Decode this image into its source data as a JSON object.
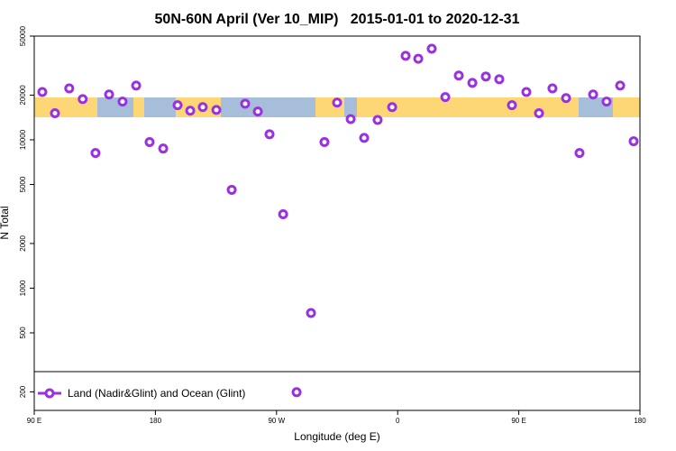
{
  "chart_data": {
    "type": "scatter",
    "title": "50N-60N April (Ver 10_MIP)   2015-01-01 to 2020-12-31",
    "x_label": "Longitude (deg E)",
    "y_label": "N Total",
    "log_y": true,
    "legend": "bottom",
    "xlim": [
      90,
      540
    ],
    "xticks": [
      {
        "value": 90,
        "label": "90 E"
      },
      180,
      {
        "value": 270,
        "label": "90 W"
      },
      {
        "value": 360,
        "label": "0"
      },
      {
        "value": 450,
        "label": "90 E"
      },
      {
        "value": 540,
        "label": "180"
      }
    ],
    "ylim": [
      150,
      50000
    ],
    "yticks": [
      200,
      500,
      1000,
      2000,
      5000,
      10000,
      20000,
      50000
    ],
    "series": [
      {
        "name": "Land (Nadir&Glint) and Ocean (Glint)",
        "color": "#9b30e0",
        "x": [
          96,
          105.4,
          116,
          126,
          135.5,
          145.6,
          155.6,
          165.7,
          175.7,
          185.8,
          196.5,
          205.9,
          215.2,
          225.3,
          236.7,
          246.7,
          256.1,
          264.8,
          274.9,
          284.9,
          295.6,
          305.6,
          315,
          325.1,
          335.1,
          345.1,
          355.9,
          365.9,
          375.3,
          385.3,
          395.4,
          405.4,
          415.5,
          425.5,
          435.5,
          444.9,
          455.6,
          465,
          475,
          485.1,
          495.1,
          505.2,
          515.2,
          525.3,
          535.3
        ],
        "values": [
          21000,
          15100,
          22200,
          18800,
          8150,
          20200,
          18100,
          23200,
          9650,
          8730,
          17100,
          15700,
          16600,
          15900,
          4600,
          17500,
          15500,
          10900,
          3150,
          199,
          680,
          9650,
          17800,
          13800,
          10300,
          13600,
          16600,
          36800,
          35200,
          41100,
          19400,
          27100,
          24200,
          26700,
          25600,
          17100,
          21000,
          15100,
          22200,
          19100,
          8150,
          20200,
          18100,
          23200,
          9770
        ]
      }
    ]
  }
}
